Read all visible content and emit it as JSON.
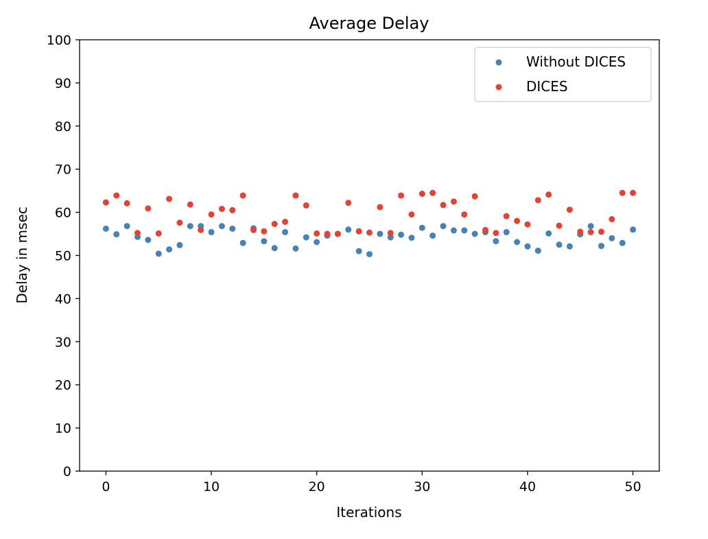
{
  "chart_data": {
    "type": "scatter",
    "title": "Average Delay",
    "xlabel": "Iterations",
    "ylabel": "Delay in msec",
    "xlim": [
      -2.5,
      52.5
    ],
    "ylim": [
      0,
      100
    ],
    "xticks": [
      0,
      10,
      20,
      30,
      40,
      50
    ],
    "yticks": [
      0,
      10,
      20,
      30,
      40,
      50,
      60,
      70,
      80,
      90,
      100
    ],
    "grid": false,
    "legend_position": "top-right",
    "x": [
      0,
      1,
      2,
      3,
      4,
      5,
      6,
      7,
      8,
      9,
      10,
      11,
      12,
      13,
      14,
      15,
      16,
      17,
      18,
      19,
      20,
      21,
      22,
      23,
      24,
      25,
      26,
      27,
      28,
      29,
      30,
      31,
      32,
      33,
      34,
      35,
      36,
      37,
      38,
      39,
      40,
      41,
      42,
      43,
      44,
      45,
      46,
      47,
      48,
      49,
      50
    ],
    "series": [
      {
        "name": "Without DICES",
        "color": "#4682b4",
        "values": [
          56.2,
          54.9,
          56.8,
          54.3,
          53.6,
          50.4,
          51.4,
          52.4,
          56.8,
          56.8,
          55.4,
          56.8,
          56.2,
          52.9,
          56.3,
          53.3,
          51.7,
          55.4,
          51.6,
          54.2,
          53.1,
          54.6,
          55.0,
          56.0,
          51.0,
          50.3,
          55.0,
          54.2,
          54.8,
          54.1,
          56.4,
          54.6,
          56.8,
          55.8,
          55.8,
          55.0,
          55.4,
          53.3,
          55.4,
          53.1,
          52.1,
          51.1,
          55.1,
          52.5,
          52.1,
          54.9,
          56.8,
          52.2,
          54.0,
          52.9,
          56.0
        ]
      },
      {
        "name": "DICES",
        "color": "#e34234",
        "values": [
          62.3,
          63.9,
          62.1,
          55.2,
          60.9,
          55.1,
          63.1,
          57.6,
          61.8,
          55.9,
          59.5,
          60.8,
          60.5,
          63.9,
          55.9,
          55.6,
          57.3,
          57.8,
          63.9,
          61.6,
          55.1,
          55.0,
          55.0,
          62.2,
          55.6,
          55.3,
          61.2,
          55.2,
          63.9,
          59.5,
          64.3,
          64.5,
          61.7,
          62.5,
          59.5,
          63.7,
          55.9,
          55.2,
          59.1,
          58.0,
          57.2,
          62.8,
          64.1,
          56.9,
          60.6,
          55.5,
          55.4,
          55.5,
          58.4,
          64.5,
          64.5
        ]
      }
    ]
  }
}
